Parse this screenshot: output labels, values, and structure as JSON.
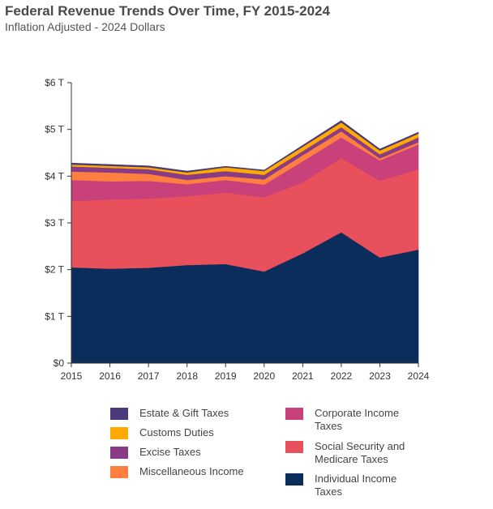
{
  "header": {
    "title": "Federal Revenue Trends Over Time, FY 2015-2024",
    "subtitle": "Inflation Adjusted - 2024 Dollars"
  },
  "chart_data": {
    "type": "area",
    "stacked": true,
    "x": [
      "2015",
      "2016",
      "2017",
      "2018",
      "2019",
      "2020",
      "2021",
      "2022",
      "2023",
      "2024"
    ],
    "ylim": [
      0,
      6
    ],
    "y_ticks": [
      "$0",
      "$1 T",
      "$2 T",
      "$3 T",
      "$4 T",
      "$5 T",
      "$6 T"
    ],
    "y_unit": "trillions of 2024 dollars",
    "grid": false,
    "legend_position": "bottom",
    "series": [
      {
        "name": "Individual Income Taxes",
        "color": "#0b2d5b",
        "values": [
          2.05,
          2.02,
          2.04,
          2.1,
          2.12,
          1.96,
          2.35,
          2.8,
          2.26,
          2.43
        ]
      },
      {
        "name": "Social Security and Medicare Taxes",
        "color": "#e8505b",
        "values": [
          1.42,
          1.48,
          1.48,
          1.47,
          1.53,
          1.59,
          1.52,
          1.59,
          1.64,
          1.72
        ]
      },
      {
        "name": "Corporate Income Taxes",
        "color": "#c8417a",
        "values": [
          0.45,
          0.39,
          0.38,
          0.26,
          0.27,
          0.27,
          0.45,
          0.44,
          0.44,
          0.53
        ]
      },
      {
        "name": "Miscellaneous Income",
        "color": "#ff7f41",
        "values": [
          0.18,
          0.19,
          0.15,
          0.09,
          0.08,
          0.11,
          0.13,
          0.13,
          0.04,
          0.05
        ]
      },
      {
        "name": "Excise Taxes",
        "color": "#8a3b86",
        "values": [
          0.11,
          0.1,
          0.1,
          0.11,
          0.11,
          0.1,
          0.09,
          0.09,
          0.09,
          0.1
        ]
      },
      {
        "name": "Customs Duties",
        "color": "#ffaa00",
        "values": [
          0.04,
          0.04,
          0.04,
          0.05,
          0.08,
          0.08,
          0.09,
          0.1,
          0.08,
          0.08
        ]
      },
      {
        "name": "Estate & Gift Taxes",
        "color": "#4b3a79",
        "values": [
          0.03,
          0.03,
          0.03,
          0.03,
          0.02,
          0.02,
          0.03,
          0.04,
          0.03,
          0.03
        ]
      }
    ]
  },
  "legend": {
    "left": [
      {
        "name": "Estate & Gift Taxes",
        "color": "#4b3a79"
      },
      {
        "name": "Customs Duties",
        "color": "#ffaa00"
      },
      {
        "name": "Excise Taxes",
        "color": "#8a3b86"
      },
      {
        "name": "Miscellaneous Income",
        "color": "#ff7f41"
      }
    ],
    "right": [
      {
        "name": "Corporate Income Taxes",
        "color": "#c8417a"
      },
      {
        "name": "Social Security and Medicare Taxes",
        "color": "#e8505b"
      },
      {
        "name": "Individual Income Taxes",
        "color": "#0b2d5b"
      }
    ]
  }
}
